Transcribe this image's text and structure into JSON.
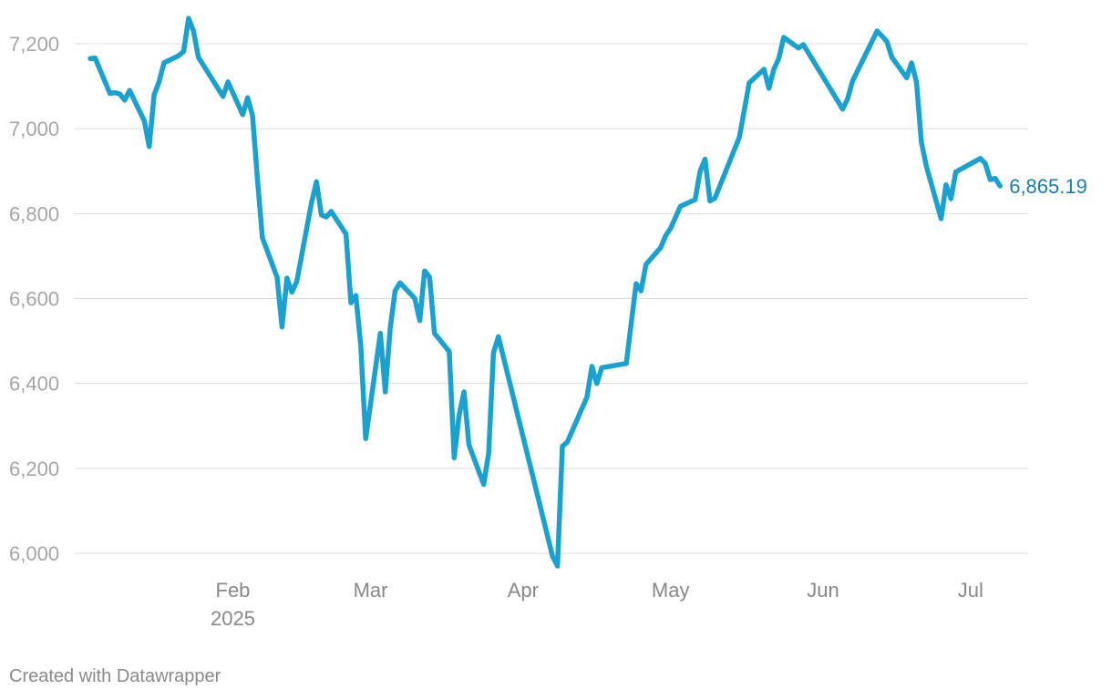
{
  "chart_data": {
    "type": "line",
    "title": "",
    "xlabel": "",
    "ylabel": "",
    "ylim": [
      5950,
      7260
    ],
    "xlim": [
      "2025-01-03",
      "2025-07-09"
    ],
    "grid": true,
    "legend": "none",
    "yticks": [
      {
        "value": 6000,
        "label": "6,000"
      },
      {
        "value": 6200,
        "label": "6,200"
      },
      {
        "value": 6400,
        "label": "6,400"
      },
      {
        "value": 6600,
        "label": "6,600"
      },
      {
        "value": 6800,
        "label": "6,800"
      },
      {
        "value": 7000,
        "label": "7,000"
      },
      {
        "value": 7200,
        "label": "7,200"
      }
    ],
    "xticks": [
      {
        "date": "2025-02-01",
        "label": "Feb",
        "sublabel": "2025"
      },
      {
        "date": "2025-03-01",
        "label": "Mar",
        "sublabel": ""
      },
      {
        "date": "2025-04-01",
        "label": "Apr",
        "sublabel": ""
      },
      {
        "date": "2025-05-01",
        "label": "May",
        "sublabel": ""
      },
      {
        "date": "2025-06-01",
        "label": "Jun",
        "sublabel": ""
      },
      {
        "date": "2025-07-01",
        "label": "Jul",
        "sublabel": ""
      }
    ],
    "end_label": "6,865.19",
    "line_color": "#1ba1cf",
    "end_label_color": "#1a7fae",
    "series": [
      {
        "values": [
          [
            "2025-01-03",
            7165
          ],
          [
            "2025-01-04",
            7166
          ],
          [
            "2025-01-07",
            7083
          ],
          [
            "2025-01-08",
            7085
          ],
          [
            "2025-01-09",
            7082
          ],
          [
            "2025-01-10",
            7067
          ],
          [
            "2025-01-11",
            7090
          ],
          [
            "2025-01-14",
            7018
          ],
          [
            "2025-01-15",
            6958
          ],
          [
            "2025-01-16",
            7080
          ],
          [
            "2025-01-17",
            7110
          ],
          [
            "2025-01-18",
            7155
          ],
          [
            "2025-01-21",
            7172
          ],
          [
            "2025-01-22",
            7182
          ],
          [
            "2025-01-23",
            7260
          ],
          [
            "2025-01-24",
            7230
          ],
          [
            "2025-01-25",
            7168
          ],
          [
            "2025-01-30",
            7076
          ],
          [
            "2025-01-31",
            7110
          ],
          [
            "2025-02-03",
            7033
          ],
          [
            "2025-02-04",
            7073
          ],
          [
            "2025-02-05",
            7030
          ],
          [
            "2025-02-06",
            6880
          ],
          [
            "2025-02-07",
            6743
          ],
          [
            "2025-02-10",
            6650
          ],
          [
            "2025-02-11",
            6533
          ],
          [
            "2025-02-12",
            6648
          ],
          [
            "2025-02-13",
            6615
          ],
          [
            "2025-02-14",
            6640
          ],
          [
            "2025-02-17",
            6826
          ],
          [
            "2025-02-18",
            6875
          ],
          [
            "2025-02-19",
            6797
          ],
          [
            "2025-02-20",
            6792
          ],
          [
            "2025-02-21",
            6805
          ],
          [
            "2025-02-24",
            6752
          ],
          [
            "2025-02-25",
            6590
          ],
          [
            "2025-02-26",
            6607
          ],
          [
            "2025-02-27",
            6490
          ],
          [
            "2025-02-28",
            6270
          ],
          [
            "2025-03-03",
            6518
          ],
          [
            "2025-03-04",
            6380
          ],
          [
            "2025-03-05",
            6530
          ],
          [
            "2025-03-06",
            6618
          ],
          [
            "2025-03-07",
            6637
          ],
          [
            "2025-03-10",
            6600
          ],
          [
            "2025-03-11",
            6548
          ],
          [
            "2025-03-12",
            6665
          ],
          [
            "2025-03-13",
            6650
          ],
          [
            "2025-03-14",
            6518
          ],
          [
            "2025-03-17",
            6475
          ],
          [
            "2025-03-18",
            6225
          ],
          [
            "2025-03-19",
            6325
          ],
          [
            "2025-03-20",
            6380
          ],
          [
            "2025-03-21",
            6255
          ],
          [
            "2025-03-24",
            6162
          ],
          [
            "2025-03-25",
            6235
          ],
          [
            "2025-03-26",
            6472
          ],
          [
            "2025-03-27",
            6510
          ],
          [
            "2025-04-07",
            5993
          ],
          [
            "2025-04-08",
            5970
          ],
          [
            "2025-04-09",
            6252
          ],
          [
            "2025-04-10",
            6262
          ],
          [
            "2025-04-14",
            6368
          ],
          [
            "2025-04-15",
            6440
          ],
          [
            "2025-04-16",
            6400
          ],
          [
            "2025-04-17",
            6437
          ],
          [
            "2025-04-22",
            6447
          ],
          [
            "2025-04-24",
            6635
          ],
          [
            "2025-04-25",
            6618
          ],
          [
            "2025-04-26",
            6680
          ],
          [
            "2025-04-29",
            6720
          ],
          [
            "2025-04-30",
            6748
          ],
          [
            "2025-05-01",
            6765
          ],
          [
            "2025-05-03",
            6817
          ],
          [
            "2025-05-06",
            6833
          ],
          [
            "2025-05-07",
            6900
          ],
          [
            "2025-05-08",
            6928
          ],
          [
            "2025-05-09",
            6830
          ],
          [
            "2025-05-10",
            6836
          ],
          [
            "2025-05-15",
            6980
          ],
          [
            "2025-05-17",
            7108
          ],
          [
            "2025-05-20",
            7140
          ],
          [
            "2025-05-21",
            7095
          ],
          [
            "2025-05-22",
            7140
          ],
          [
            "2025-05-23",
            7165
          ],
          [
            "2025-05-24",
            7215
          ],
          [
            "2025-05-27",
            7190
          ],
          [
            "2025-05-28",
            7198
          ],
          [
            "2025-06-05",
            7046
          ],
          [
            "2025-06-06",
            7070
          ],
          [
            "2025-06-07",
            7112
          ],
          [
            "2025-06-12",
            7230
          ],
          [
            "2025-06-13",
            7218
          ],
          [
            "2025-06-14",
            7205
          ],
          [
            "2025-06-15",
            7168
          ],
          [
            "2025-06-18",
            7120
          ],
          [
            "2025-06-19",
            7155
          ],
          [
            "2025-06-20",
            7110
          ],
          [
            "2025-06-21",
            6968
          ],
          [
            "2025-06-22",
            6912
          ],
          [
            "2025-06-25",
            6788
          ],
          [
            "2025-06-26",
            6868
          ],
          [
            "2025-06-27",
            6835
          ],
          [
            "2025-06-28",
            6898
          ],
          [
            "2025-07-03",
            6930
          ],
          [
            "2025-07-04",
            6918
          ],
          [
            "2025-07-05",
            6880
          ],
          [
            "2025-07-06",
            6883
          ],
          [
            "2025-07-07",
            6865.19
          ]
        ]
      }
    ]
  },
  "credit": "Created with Datawrapper"
}
